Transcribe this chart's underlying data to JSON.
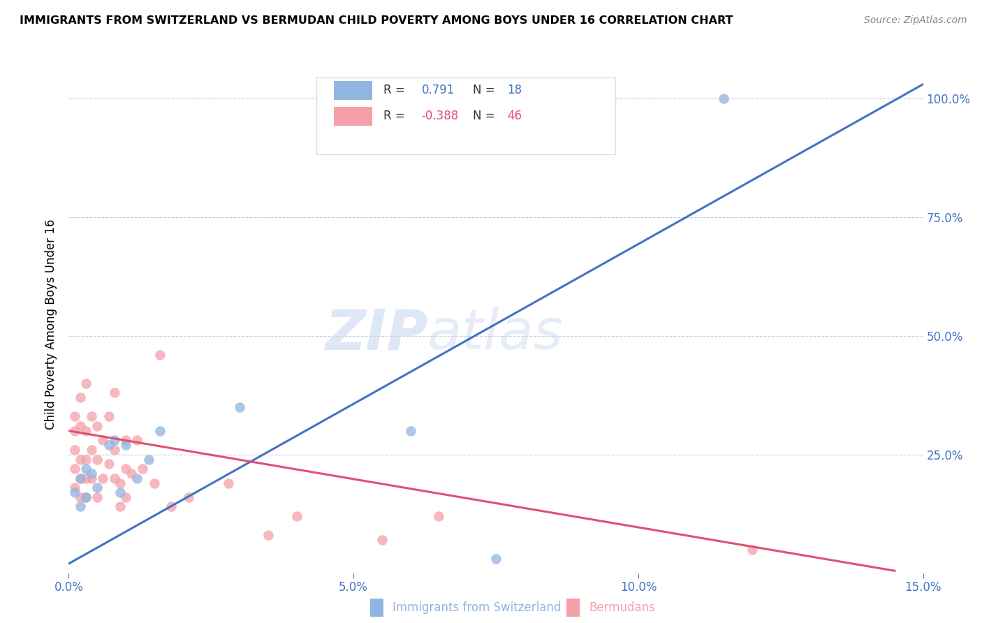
{
  "title": "IMMIGRANTS FROM SWITZERLAND VS BERMUDAN CHILD POVERTY AMONG BOYS UNDER 16 CORRELATION CHART",
  "source": "Source: ZipAtlas.com",
  "ylabel": "Child Poverty Among Boys Under 16",
  "x_label_blue": "Immigrants from Switzerland",
  "x_label_pink": "Bermudans",
  "xlim": [
    0.0,
    0.15
  ],
  "ylim": [
    0.0,
    1.05
  ],
  "xticks": [
    0.0,
    0.05,
    0.1,
    0.15
  ],
  "xticklabels": [
    "0.0%",
    "5.0%",
    "10.0%",
    "15.0%"
  ],
  "yticks": [
    0.0,
    0.25,
    0.5,
    0.75,
    1.0
  ],
  "yticklabels_right": [
    "",
    "25.0%",
    "50.0%",
    "75.0%",
    "100.0%"
  ],
  "blue_R": "0.791",
  "blue_N": "18",
  "pink_R": "-0.388",
  "pink_N": "46",
  "blue_color": "#92B4E0",
  "pink_color": "#F4A0A8",
  "trend_blue_color": "#4472C4",
  "trend_pink_color": "#E05070",
  "axis_color": "#4472C4",
  "watermark_zip": "ZIP",
  "watermark_atlas": "atlas",
  "blue_points_x": [
    0.001,
    0.002,
    0.002,
    0.003,
    0.003,
    0.004,
    0.005,
    0.007,
    0.008,
    0.009,
    0.01,
    0.012,
    0.014,
    0.016,
    0.03,
    0.06,
    0.075,
    0.115
  ],
  "blue_points_y": [
    0.17,
    0.2,
    0.14,
    0.22,
    0.16,
    0.21,
    0.18,
    0.27,
    0.28,
    0.17,
    0.27,
    0.2,
    0.24,
    0.3,
    0.35,
    0.3,
    0.03,
    1.0
  ],
  "pink_points_x": [
    0.001,
    0.001,
    0.001,
    0.001,
    0.001,
    0.002,
    0.002,
    0.002,
    0.002,
    0.002,
    0.003,
    0.003,
    0.003,
    0.003,
    0.003,
    0.004,
    0.004,
    0.004,
    0.005,
    0.005,
    0.005,
    0.006,
    0.006,
    0.007,
    0.007,
    0.008,
    0.008,
    0.008,
    0.009,
    0.009,
    0.01,
    0.01,
    0.01,
    0.011,
    0.012,
    0.013,
    0.015,
    0.016,
    0.018,
    0.021,
    0.028,
    0.035,
    0.04,
    0.055,
    0.065,
    0.12
  ],
  "pink_points_y": [
    0.33,
    0.3,
    0.26,
    0.22,
    0.18,
    0.37,
    0.31,
    0.24,
    0.2,
    0.16,
    0.4,
    0.3,
    0.24,
    0.2,
    0.16,
    0.33,
    0.26,
    0.2,
    0.31,
    0.24,
    0.16,
    0.28,
    0.2,
    0.33,
    0.23,
    0.38,
    0.26,
    0.2,
    0.19,
    0.14,
    0.28,
    0.22,
    0.16,
    0.21,
    0.28,
    0.22,
    0.19,
    0.46,
    0.14,
    0.16,
    0.19,
    0.08,
    0.12,
    0.07,
    0.12,
    0.05
  ],
  "blue_trendline_x": [
    0.0,
    0.15
  ],
  "blue_trendline_y": [
    0.02,
    1.03
  ],
  "pink_trendline_x": [
    0.0,
    0.145
  ],
  "pink_trendline_y": [
    0.3,
    0.005
  ]
}
